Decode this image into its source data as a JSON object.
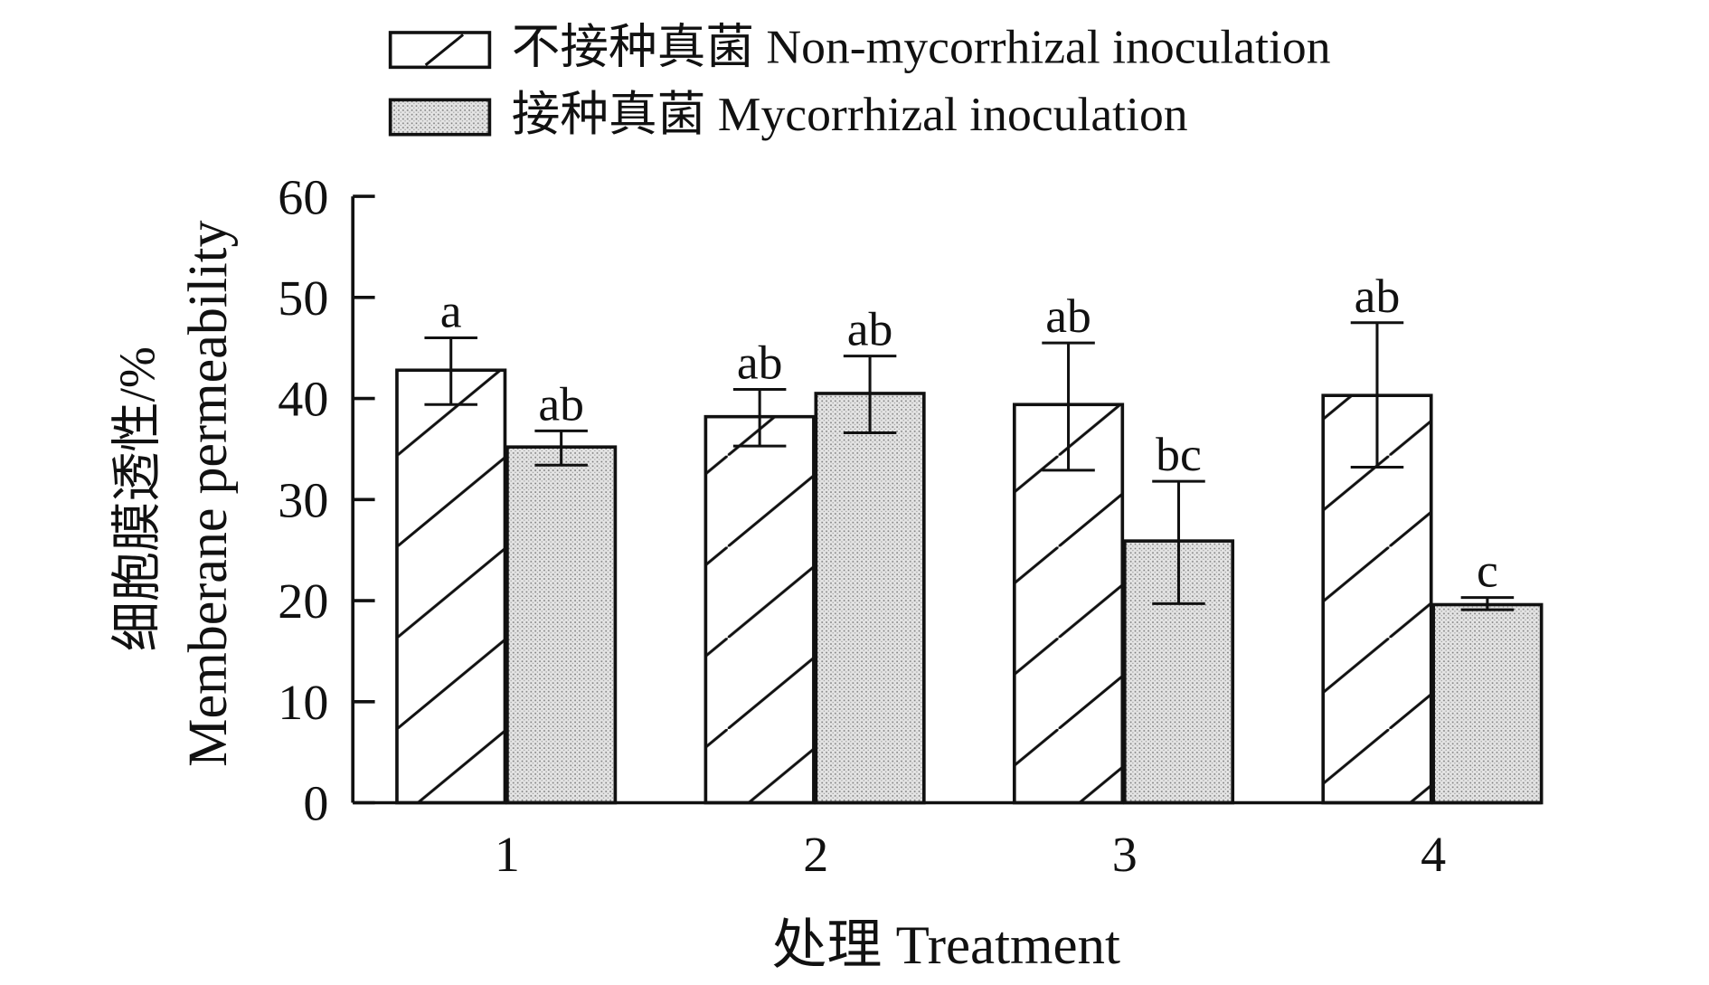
{
  "chart_data": {
    "type": "bar",
    "title": "",
    "xlabel": "处理 Treatment",
    "ylabel_cn": "细胞膜透性/%",
    "ylabel_en": "Memberane permeability",
    "ylim": [
      0,
      60
    ],
    "yticks": [
      0,
      10,
      20,
      30,
      40,
      50,
      60
    ],
    "categories": [
      "1",
      "2",
      "3",
      "4"
    ],
    "grid": false,
    "legend_position": "top",
    "series": [
      {
        "name": "不接种真菌 Non-mycorrhizal inoculation",
        "pattern": "diagonal-hatch",
        "values": [
          42.8,
          38.2,
          39.4,
          40.3
        ],
        "err_high": [
          46.0,
          40.9,
          45.5,
          47.5
        ],
        "err_low": [
          39.4,
          35.3,
          32.9,
          33.2
        ],
        "labels": [
          "a",
          "ab",
          "ab",
          "ab"
        ]
      },
      {
        "name": "接种真菌 Mycorrhizal inoculation",
        "pattern": "gray-dots",
        "values": [
          35.2,
          40.5,
          25.9,
          19.6
        ],
        "err_high": [
          36.8,
          44.2,
          31.8,
          20.3
        ],
        "err_low": [
          33.4,
          36.6,
          19.7,
          19.1
        ],
        "labels": [
          "ab",
          "ab",
          "bc",
          "c"
        ]
      }
    ]
  }
}
